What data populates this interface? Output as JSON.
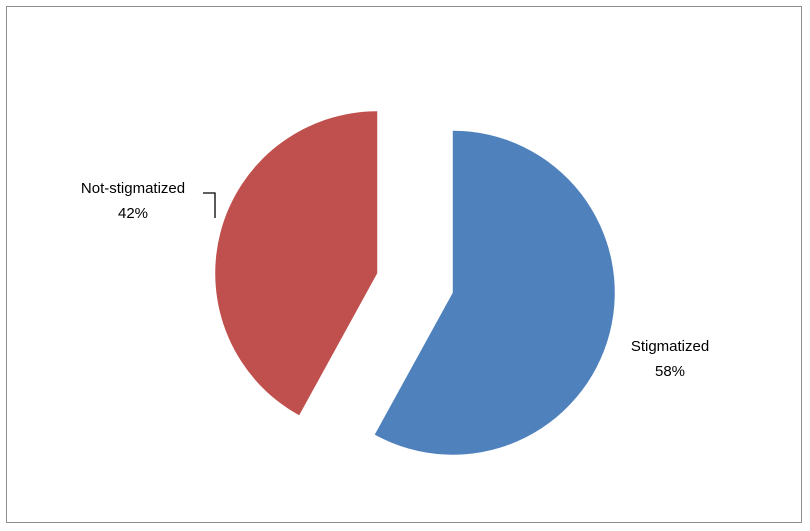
{
  "chart_data": {
    "type": "pie",
    "title": "",
    "exploded": true,
    "legend": "none",
    "slices": [
      {
        "name": "Stigmatized",
        "value": 58,
        "label": "Stigmatized",
        "percent_label": "58%",
        "color": "#4f81bd"
      },
      {
        "name": "Not-stigmatized",
        "value": 42,
        "label": "Not-stigmatized",
        "percent_label": "42%",
        "color": "#c0504d"
      }
    ]
  }
}
